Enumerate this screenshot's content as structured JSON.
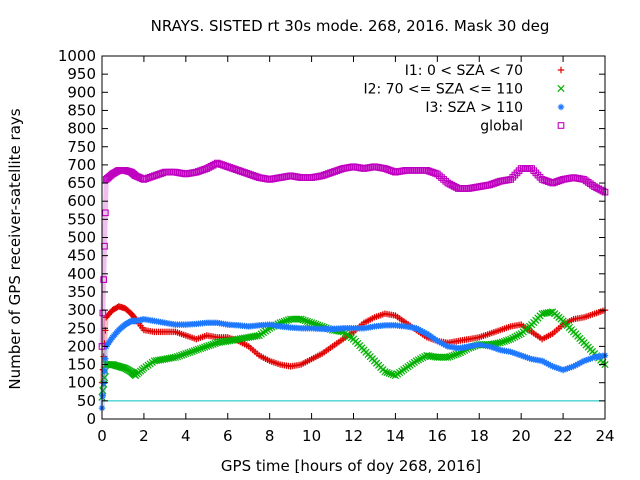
{
  "chart_data": {
    "type": "scatter",
    "title": "NRAYS. SISTED rt 30s mode. 268, 2016. Mask 30 deg",
    "xlabel": "GPS time [hours of doy 268, 2016]",
    "ylabel": "Number of GPS receiver-satellite rays",
    "xlim": [
      0,
      24
    ],
    "ylim": [
      0,
      1000
    ],
    "xticks": [
      "0",
      "2",
      "4",
      "6",
      "8",
      "10",
      "12",
      "14",
      "16",
      "18",
      "20",
      "22",
      "24"
    ],
    "yticks": [
      "0",
      "50",
      "100",
      "150",
      "200",
      "250",
      "300",
      "350",
      "400",
      "450",
      "500",
      "550",
      "600",
      "650",
      "700",
      "750",
      "800",
      "850",
      "900",
      "950",
      "1000"
    ],
    "threshold_line": {
      "y": 50,
      "color": "#00c0c0"
    },
    "series": [
      {
        "name": "I1: 0 < SZA < 70",
        "marker": "plus",
        "color": "#e00000",
        "x": [
          0,
          0.2,
          0.5,
          0.8,
          1.1,
          1.4,
          1.6,
          2,
          2.5,
          3,
          3.5,
          4,
          4.5,
          5,
          5.5,
          6,
          6.5,
          7,
          7.5,
          8,
          8.5,
          9,
          9.5,
          10,
          10.5,
          11,
          11.5,
          12,
          12.5,
          13,
          13.5,
          14,
          14.5,
          15,
          15.5,
          16,
          16.5,
          17,
          17.5,
          18,
          18.5,
          19,
          19.5,
          20,
          20.5,
          21,
          21.5,
          22,
          22.5,
          23,
          23.5,
          24
        ],
        "y": [
          100,
          280,
          300,
          310,
          305,
          290,
          275,
          245,
          240,
          240,
          240,
          230,
          220,
          230,
          225,
          225,
          215,
          200,
          175,
          160,
          150,
          145,
          150,
          165,
          180,
          200,
          220,
          240,
          265,
          280,
          290,
          285,
          265,
          245,
          225,
          215,
          210,
          215,
          220,
          225,
          235,
          245,
          255,
          260,
          240,
          220,
          235,
          260,
          275,
          280,
          290,
          300
        ]
      },
      {
        "name": "I2: 70 <= SZA <= 110",
        "marker": "cross",
        "color": "#00b000",
        "x": [
          0,
          0.2,
          0.5,
          0.8,
          1.1,
          1.4,
          1.6,
          2,
          2.5,
          3,
          3.5,
          4,
          4.5,
          5,
          5.5,
          6,
          6.5,
          7,
          7.5,
          8,
          8.5,
          9,
          9.5,
          10,
          10.5,
          11,
          11.5,
          12,
          12.5,
          13,
          13.5,
          14,
          14.5,
          15,
          15.5,
          16,
          16.5,
          17,
          17.5,
          18,
          18.5,
          19,
          19.5,
          20,
          20.5,
          21,
          21.5,
          22,
          22.5,
          23,
          23.5,
          24
        ],
        "y": [
          60,
          150,
          150,
          145,
          140,
          130,
          120,
          140,
          160,
          165,
          170,
          180,
          190,
          200,
          210,
          215,
          220,
          225,
          230,
          250,
          265,
          275,
          275,
          265,
          255,
          245,
          240,
          220,
          190,
          160,
          130,
          120,
          140,
          160,
          175,
          170,
          170,
          180,
          195,
          205,
          205,
          210,
          220,
          235,
          260,
          290,
          295,
          270,
          240,
          210,
          180,
          150
        ]
      },
      {
        "name": "I3: SZA > 110",
        "marker": "star",
        "color": "#1e78ff",
        "x": [
          0,
          0.2,
          0.5,
          0.8,
          1.1,
          1.4,
          1.6,
          2,
          2.5,
          3,
          3.5,
          4,
          4.5,
          5,
          5.5,
          6,
          6.5,
          7,
          7.5,
          8,
          8.5,
          9,
          9.5,
          10,
          10.5,
          11,
          11.5,
          12,
          12.5,
          13,
          13.5,
          14,
          14.5,
          15,
          15.5,
          16,
          16.5,
          17,
          17.5,
          18,
          18.5,
          19,
          19.5,
          20,
          20.5,
          21,
          21.5,
          22,
          22.5,
          23,
          23.5,
          24
        ],
        "y": [
          30,
          200,
          225,
          245,
          260,
          270,
          270,
          275,
          270,
          265,
          260,
          260,
          262,
          265,
          265,
          260,
          258,
          255,
          258,
          260,
          255,
          252,
          250,
          250,
          248,
          248,
          250,
          250,
          250,
          255,
          258,
          258,
          255,
          250,
          235,
          215,
          200,
          195,
          200,
          205,
          200,
          190,
          185,
          175,
          165,
          160,
          145,
          135,
          145,
          160,
          170,
          175
        ]
      },
      {
        "name": "global",
        "marker": "square",
        "color": "#c000c0",
        "x": [
          0,
          0.2,
          0.5,
          0.8,
          1.1,
          1.4,
          1.6,
          2,
          2.5,
          3,
          3.5,
          4,
          4.5,
          5,
          5.5,
          6,
          6.5,
          7,
          7.5,
          8,
          8.5,
          9,
          9.5,
          10,
          10.5,
          11,
          11.5,
          12,
          12.5,
          13,
          13.5,
          14,
          14.5,
          15,
          15.5,
          16,
          16.5,
          17,
          17.5,
          18,
          18.5,
          19,
          19.5,
          20,
          20.5,
          21,
          21.5,
          22,
          22.5,
          23,
          23.5,
          24
        ],
        "y": [
          200,
          660,
          675,
          685,
          685,
          680,
          670,
          660,
          670,
          680,
          680,
          675,
          680,
          690,
          705,
          695,
          685,
          675,
          665,
          660,
          665,
          670,
          665,
          665,
          670,
          680,
          690,
          695,
          690,
          695,
          690,
          680,
          685,
          685,
          685,
          675,
          650,
          635,
          635,
          640,
          645,
          655,
          660,
          690,
          690,
          660,
          650,
          660,
          665,
          660,
          640,
          625
        ]
      }
    ]
  }
}
